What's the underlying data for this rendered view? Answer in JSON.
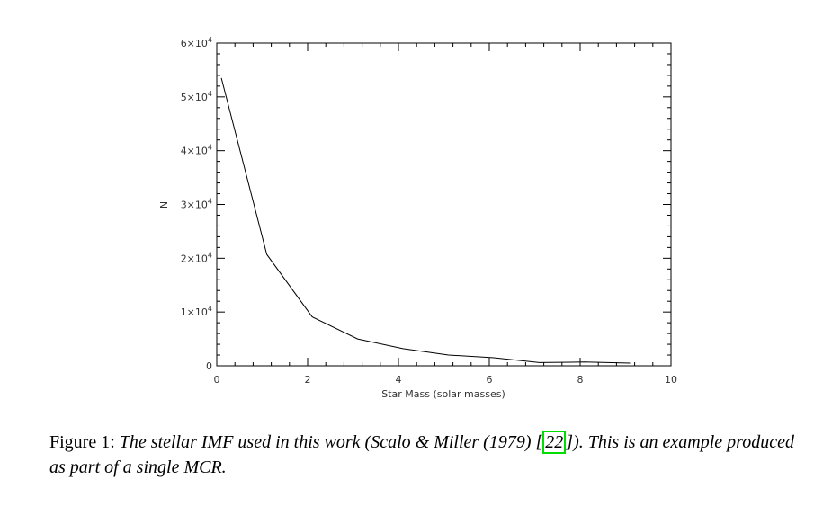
{
  "chart_data": {
    "type": "line",
    "title": "",
    "xlabel": "Star Mass (solar masses)",
    "ylabel": "N",
    "xlim": [
      0,
      10
    ],
    "ylim": [
      0,
      60000
    ],
    "x_ticks": [
      0,
      2,
      4,
      6,
      8,
      10
    ],
    "y_ticks": [
      0,
      10000,
      20000,
      30000,
      40000,
      50000,
      60000
    ],
    "y_tick_labels": [
      {
        "mant": "0",
        "exp": ""
      },
      {
        "mant": "1×10",
        "exp": "4"
      },
      {
        "mant": "2×10",
        "exp": "4"
      },
      {
        "mant": "3×10",
        "exp": "4"
      },
      {
        "mant": "4×10",
        "exp": "4"
      },
      {
        "mant": "5×10",
        "exp": "4"
      },
      {
        "mant": "6×10",
        "exp": "4"
      }
    ],
    "grid": false,
    "series": [
      {
        "x": [
          0.1,
          1.1,
          2.1,
          3.1,
          4.1,
          5.1,
          6.1,
          7.1,
          8.1,
          9.1
        ],
        "y": [
          53500,
          20700,
          9100,
          5000,
          3200,
          2000,
          1500,
          600,
          700,
          500
        ]
      }
    ]
  },
  "caption": {
    "label": "Figure 1:",
    "text_before_ref": "The stellar IMF used in this work (Scalo & Miller (1979) [",
    "ref": "22",
    "text_after_ref": "]). This is an example produced as part of a single MCR."
  }
}
